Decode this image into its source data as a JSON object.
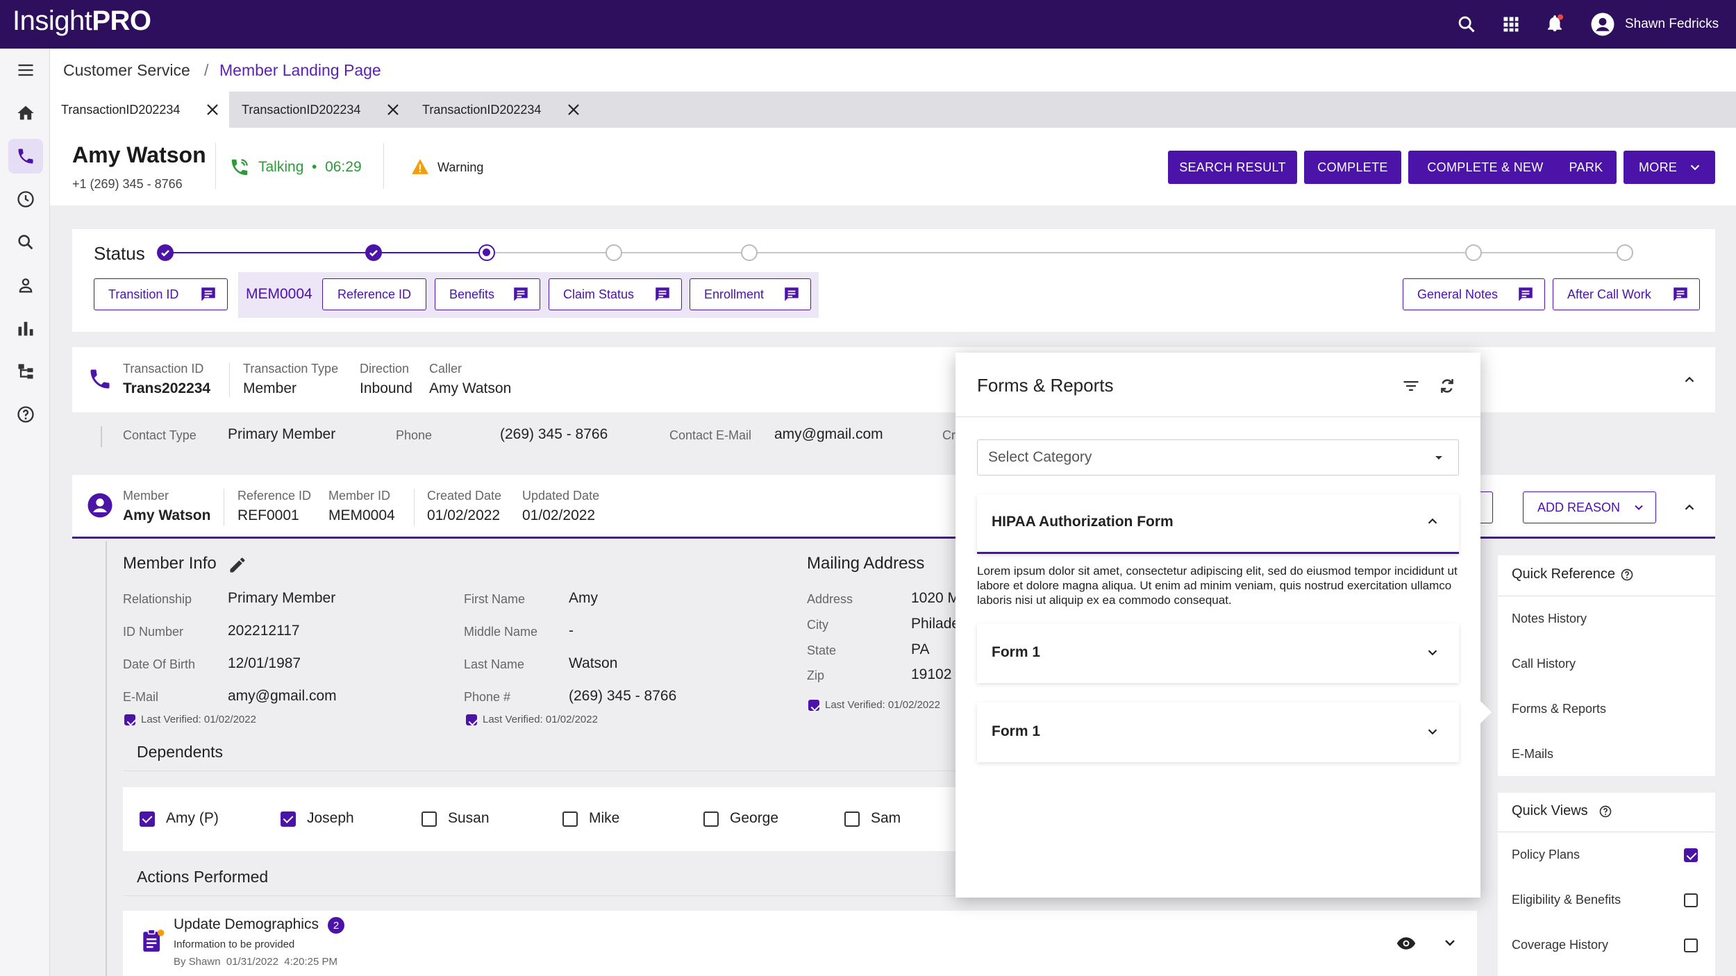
{
  "app": {
    "logo_light": "Insight",
    "logo_bold": "PRO",
    "user": "Shawn Fedricks"
  },
  "breadcrumb": {
    "root": "Customer Service",
    "sep": "/",
    "current": "Member Landing Page"
  },
  "tabs": [
    {
      "label": "TransactionID202234"
    },
    {
      "label": "TransactionID202234"
    },
    {
      "label": "TransactionID202234"
    }
  ],
  "caller": {
    "name": "Amy Watson",
    "phone": "+1 (269) 345 - 8766",
    "call_state": "Talking",
    "call_sep": "•",
    "timer": "06:29",
    "warning": "Warning"
  },
  "actions": {
    "search_result": "SEARCH RESULT",
    "complete": "COMPLETE",
    "complete_new": "COMPLETE & NEW",
    "park": "PARK",
    "more": "MORE"
  },
  "status": {
    "label": "Status",
    "step_states": [
      "done",
      "done",
      "current",
      "todo",
      "todo",
      "todo",
      "todo"
    ],
    "buttons": {
      "transition_id": "Transition ID",
      "mem_id": "MEM0004",
      "reference_id": "Reference ID",
      "benefits": "Benefits",
      "claim_status": "Claim Status",
      "enrollment": "Enrollment",
      "general_notes": "General Notes",
      "after_call_work": "After Call Work"
    }
  },
  "transaction": {
    "id_label": "Transaction ID",
    "id_value": "Trans202234",
    "type_label": "Transaction Type",
    "type_value": "Member",
    "direction_label": "Direction",
    "direction_value": "Inbound",
    "caller_label": "Caller",
    "caller_value": "Amy Watson",
    "contact_type_label": "Contact Type",
    "contact_type_value": "Primary Member",
    "phone_label": "Phone",
    "phone_value": "(269) 345 - 8766",
    "email_label": "Contact E-Mail",
    "email_value": "amy@gmail.com",
    "cut_label": "Cr"
  },
  "member": {
    "member_label": "Member",
    "member_value": "Amy Watson",
    "ref_label": "Reference ID",
    "ref_value": "REF0001",
    "mid_label": "Member ID",
    "mid_value": "MEM0004",
    "created_label": "Created Date",
    "created_value": "01/02/2022",
    "updated_label": "Updated Date",
    "updated_value": "01/02/2022",
    "add_reason": "ADD REASON"
  },
  "member_info": {
    "title": "Member Info",
    "relationship_label": "Relationship",
    "relationship_value": "Primary Member",
    "id_label": "ID Number",
    "id_value": "202212117",
    "dob_label": "Date Of Birth",
    "dob_value": "12/01/1987",
    "email_label": "E-Mail",
    "email_value": "amy@gmail.com",
    "verified_1": "Last Verified: 01/02/2022",
    "first_label": "First Name",
    "first_value": "Amy",
    "middle_label": "Middle Name",
    "middle_value": "-",
    "last_label": "Last Name",
    "last_value": "Watson",
    "phone_label": "Phone #",
    "phone_value": "(269) 345 - 8766",
    "verified_2": "Last Verified: 01/02/2022"
  },
  "mailing": {
    "title": "Mailing Address",
    "address_label": "Address",
    "address_value": "1020 M",
    "city_label": "City",
    "city_value": "Philade",
    "state_label": "State",
    "state_value": "PA",
    "zip_label": "Zip",
    "zip_value": "19102",
    "verified": "Last Verified: 01/02/2022"
  },
  "dependents": {
    "title": "Dependents",
    "items": [
      {
        "name": "Amy (P)",
        "checked": true
      },
      {
        "name": "Joseph",
        "checked": true
      },
      {
        "name": "Susan",
        "checked": false
      },
      {
        "name": "Mike",
        "checked": false
      },
      {
        "name": "George",
        "checked": false
      },
      {
        "name": "Sam",
        "checked": false
      }
    ]
  },
  "actions_performed": {
    "title": "Actions Performed",
    "item": {
      "title": "Update Demographics",
      "badge": "2",
      "subtitle": "Information to be provided",
      "by": "By Shawn  01/31/2022  4:20:25 PM"
    }
  },
  "forms_panel": {
    "title": "Forms & Reports",
    "category_placeholder": "Select Category",
    "hipaa_title": "HIPAA Authorization Form",
    "hipaa_body": "Lorem ipsum dolor sit amet, consectetur adipiscing elit, sed do eiusmod tempor incididunt ut labore et dolore magna aliqua. Ut enim ad minim veniam, quis nostrud exercitation ullamco laboris nisi ut aliquip ex ea commodo consequat.",
    "forms": [
      "Form 1",
      "Form 1"
    ]
  },
  "quick_reference": {
    "title": "Quick Reference",
    "items": [
      "Notes History",
      "Call History",
      "Forms & Reports",
      "E-Mails"
    ]
  },
  "quick_views": {
    "title": "Quick Views",
    "items": [
      {
        "label": "Policy Plans",
        "checked": true
      },
      {
        "label": "Eligibility & Benefits",
        "checked": false
      },
      {
        "label": "Coverage History",
        "checked": false
      }
    ]
  },
  "colors": {
    "brand": "#2e0f5e",
    "accent": "#4b13a8",
    "success": "#2e9a3a",
    "warning": "#f59e0b"
  }
}
